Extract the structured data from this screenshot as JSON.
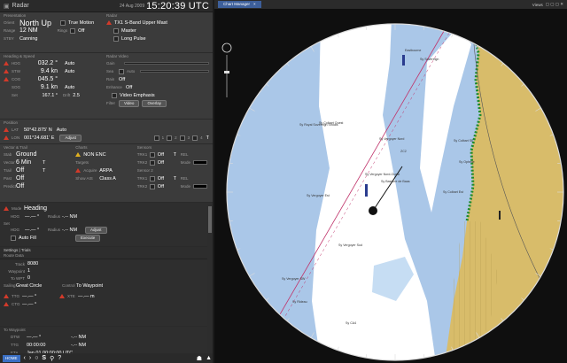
{
  "window": {
    "title": "Radar",
    "date": "24 Aug 2009",
    "time": "15:20:39 UTC"
  },
  "presentation": {
    "label": "Presentation",
    "orient_label": "Orient",
    "orient_value": "North Up",
    "motion": "True Motion",
    "range_label": "Range",
    "range_value": "12 NM",
    "rings_label": "Rings",
    "rings_value": "Off",
    "status_label": "STBY",
    "status_value": "Canning"
  },
  "radar_source": {
    "label": "Radar",
    "source": "TX1 S-Band Upper Mast",
    "master": "Master",
    "pulse": "Long Pulse"
  },
  "heading_speed": {
    "label": "Heading & Speed",
    "hdg_label": "HDG",
    "hdg": "032.2 °",
    "hdg_mode": "Auto",
    "stw_label": "STW",
    "stw": "9.4 kn",
    "stw_mode": "Auto",
    "cog_label": "COG",
    "cog": "045.5 °",
    "sog_label": "SOG",
    "sog": "9.1 kn",
    "sog_mode": "Auto",
    "set_label": "Set",
    "set": "167.1 °",
    "drift_label": "Drift",
    "drift": "2.5"
  },
  "radar_video": {
    "label": "Radar Video",
    "gain": "Gain",
    "sea": "Sea",
    "auto": "Auto",
    "rain_label": "Rain",
    "rain": "Off",
    "enhance_label": "Enhance",
    "enhance": "Off",
    "video_emphasis": "Video Emphasis",
    "filter_label": "Filter",
    "filter_video": "Video",
    "filter_overlay": "Overlay"
  },
  "position": {
    "label": "Position",
    "lat_label": "LAT",
    "lat": "50°42.875' N",
    "lat_mode": "Auto",
    "lon_label": "LON",
    "lon": "001°24.681' E",
    "lon_btn": "Adjust",
    "indicators": [
      "1",
      "2",
      "3",
      "4",
      "T"
    ]
  },
  "vector_trail": {
    "label": "Vector & Trail",
    "stab_label": "Stab",
    "stab": "Ground",
    "vector_label": "Vector",
    "vector": "6 Min",
    "vector_t": "T",
    "trail_label": "Trail",
    "trail": "Off",
    "trail_t": "T",
    "past_label": "Past",
    "past": "Off",
    "predict_label": "Predict",
    "predict": "Off"
  },
  "charts": {
    "label": "Charts",
    "enc": "NON ENC",
    "targets_label": "Targets",
    "acquire": "Acquire",
    "acquire_value": "ARPA",
    "show_ais": "Show AIS",
    "show_ais_value": "Class A"
  },
  "sensors": {
    "label": "Sensors",
    "rows": [
      {
        "name": "TRK1",
        "value": "Off",
        "t": "T",
        "rel": "REL"
      },
      {
        "name": "TRK2",
        "value": "Off",
        "t": "",
        "rel": "Mode"
      },
      {
        "name": "TRK1",
        "value": "Off",
        "t": "T",
        "rel": "REL"
      },
      {
        "name": "TRK2",
        "value": "Off",
        "t": "",
        "rel": "Mode"
      }
    ],
    "sensor2_label": "Sensor 2"
  },
  "mode": {
    "label": "Mode",
    "value": "Heading",
    "hdg_label": "HDG",
    "hdg": "—.— °",
    "radius_label": "Radius",
    "radius": "-.-- NM",
    "set_label": "Set",
    "hdg2_label": "HDG",
    "hdg2": "—.— °",
    "radius2_label": "Radius",
    "radius2": "-.-- NM",
    "adjust": "Adjust",
    "auto_fill": "Auto Fill",
    "execute": "Execute"
  },
  "settings": {
    "label": "Settings | Trials",
    "sub": "Route Data"
  },
  "route": {
    "track_label": "Track",
    "track": "8080",
    "waypoint_label": "Waypoint",
    "waypoint": "1",
    "to_label": "To WPT",
    "to": "0",
    "sailing_label": "Sailing",
    "sailing": "Great Circle",
    "control_label": "Control",
    "control": "To Waypoint",
    "ttg_label": "TTG",
    "ttg": "—.— °",
    "xte_label": "XTE",
    "xte": "—.— m",
    "ctg_label": "CTG",
    "ctg": "—.— °"
  },
  "to_waypoint": {
    "label": "To Waypoint",
    "dtw_label": "DTW",
    "dtw": "—.— °",
    "dtw_nm": "-.-- NM",
    "ttg_label": "TTG",
    "ttg": "00:00:00",
    "ttg_nm": "-.-- NM",
    "eta_label": "ETA",
    "eta": "Jan 01 00:00:00 UTC"
  },
  "toolbar": {
    "home": "HOME",
    "icons": [
      "‹",
      "›",
      "○",
      "S",
      "⚲",
      "?"
    ],
    "right_icons": [
      "☗",
      "▲"
    ]
  },
  "view": {
    "tab": "Chart Manager",
    "close": "×",
    "right_label": "Views"
  },
  "chart_labels": [
    "Eastbourne",
    "Sy Sovereign",
    "Sy Royal Sovereign Shoals",
    "Sy Vergoyer Nord",
    "Sy Vergoyer Nord-Ouest",
    "Sy Bassure de Baas",
    "Sy Ophelie",
    "Sy Colbart Ouest",
    "Sy Colbart SE",
    "ZC2",
    "Sy Colbart Est",
    "Sy Vergoyer Est",
    "Sy Vergoyer SW",
    "Sy Vergoyer Sud",
    "Sy Rideau",
    "Sy CA4"
  ],
  "colors": {
    "land": "#d8bc6a",
    "shallow": "#aac7e8",
    "deep": "#ffffff",
    "panel": "#3b3b3b",
    "highlight": "#3d5f9a"
  }
}
